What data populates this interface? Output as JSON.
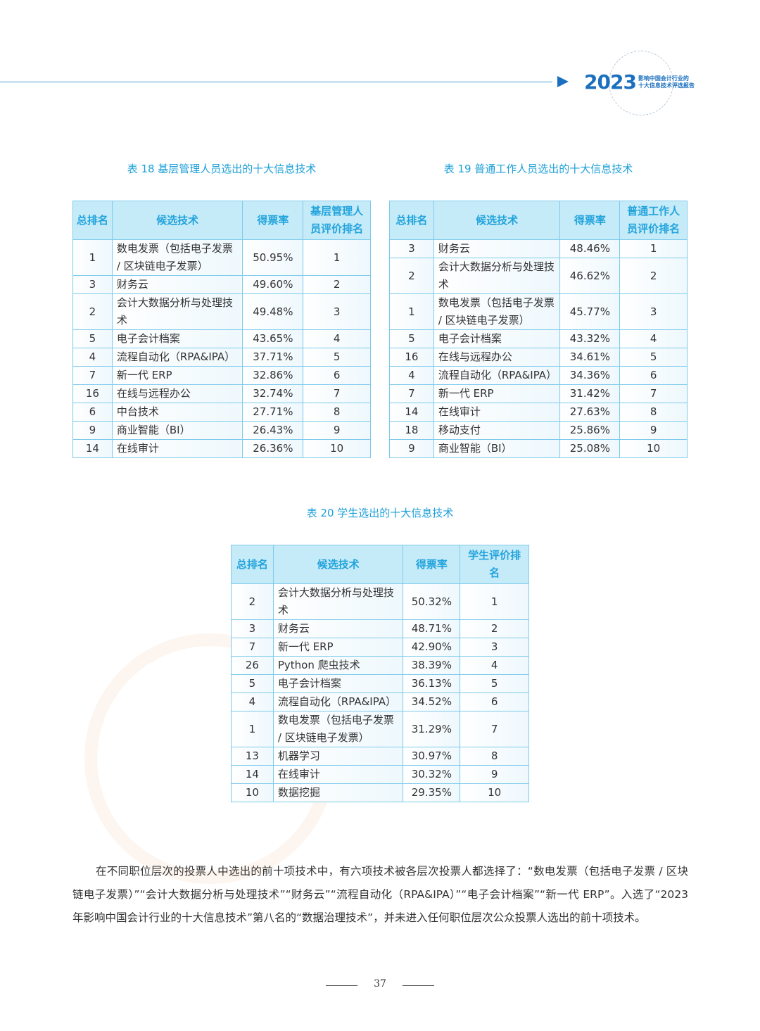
{
  "header": {
    "year": "2023",
    "subtitle_1": "影响中国会计行业的",
    "subtitle_2": "十大信息技术评选报告"
  },
  "table18": {
    "caption": "表 18  基层管理人员选出的十大信息技术",
    "headers": [
      "总排名",
      "候选技术",
      "得票率",
      "基层管理人员评价排名"
    ],
    "rows": [
      [
        "1",
        "数电发票（包括电子发票 / 区块链电子发票）",
        "50.95%",
        "1"
      ],
      [
        "3",
        "财务云",
        "49.60%",
        "2"
      ],
      [
        "2",
        "会计大数据分析与处理技术",
        "49.48%",
        "3"
      ],
      [
        "5",
        "电子会计档案",
        "43.65%",
        "4"
      ],
      [
        "4",
        "流程自动化（RPA&IPA）",
        "37.71%",
        "5"
      ],
      [
        "7",
        "新一代 ERP",
        "32.86%",
        "6"
      ],
      [
        "16",
        "在线与远程办公",
        "32.74%",
        "7"
      ],
      [
        "6",
        "中台技术",
        "27.71%",
        "8"
      ],
      [
        "9",
        "商业智能（BI）",
        "26.43%",
        "9"
      ],
      [
        "14",
        "在线审计",
        "26.36%",
        "10"
      ]
    ]
  },
  "table19": {
    "caption": "表 19  普通工作人员选出的十大信息技术",
    "headers": [
      "总排名",
      "候选技术",
      "得票率",
      "普通工作人员评价排名"
    ],
    "rows": [
      [
        "3",
        "财务云",
        "48.46%",
        "1"
      ],
      [
        "2",
        "会计大数据分析与处理技术",
        "46.62%",
        "2"
      ],
      [
        "1",
        "数电发票（包括电子发票 / 区块链电子发票）",
        "45.77%",
        "3"
      ],
      [
        "5",
        "电子会计档案",
        "43.32%",
        "4"
      ],
      [
        "16",
        "在线与远程办公",
        "34.61%",
        "5"
      ],
      [
        "4",
        "流程自动化（RPA&IPA）",
        "34.36%",
        "6"
      ],
      [
        "7",
        "新一代 ERP",
        "31.42%",
        "7"
      ],
      [
        "14",
        "在线审计",
        "27.63%",
        "8"
      ],
      [
        "18",
        "移动支付",
        "25.86%",
        "9"
      ],
      [
        "9",
        "商业智能（BI）",
        "25.08%",
        "10"
      ]
    ]
  },
  "table20": {
    "caption": "表 20  学生选出的十大信息技术",
    "headers": [
      "总排名",
      "候选技术",
      "得票率",
      "学生评价排名"
    ],
    "rows": [
      [
        "2",
        "会计大数据分析与处理技术",
        "50.32%",
        "1"
      ],
      [
        "3",
        "财务云",
        "48.71%",
        "2"
      ],
      [
        "7",
        "新一代 ERP",
        "42.90%",
        "3"
      ],
      [
        "26",
        "Python 爬虫技术",
        "38.39%",
        "4"
      ],
      [
        "5",
        "电子会计档案",
        "36.13%",
        "5"
      ],
      [
        "4",
        "流程自动化（RPA&IPA）",
        "34.52%",
        "6"
      ],
      [
        "1",
        "数电发票（包括电子发票 / 区块链电子发票）",
        "31.29%",
        "7"
      ],
      [
        "13",
        "机器学习",
        "30.97%",
        "8"
      ],
      [
        "14",
        "在线审计",
        "30.32%",
        "9"
      ],
      [
        "10",
        "数据挖掘",
        "29.35%",
        "10"
      ]
    ]
  },
  "paragraph": "在不同职位层次的投票人中选出的前十项技术中，有六项技术被各层次投票人都选择了：“数电发票（包括电子发票 / 区块链电子发票）”“会计大数据分析与处理技术”“财务云”“流程自动化（RPA&IPA）”“电子会计档案”“新一代 ERP”。入选了“2023 年影响中国会计行业的十大信息技术”第八名的“数据治理技术”，并未进入任何职位层次公众投票人选出的前十项技术。",
  "page_number": "37",
  "colors": {
    "accent": "#1ea0d8",
    "header_bg": "#c6ebf8",
    "brand": "#1b6fbf"
  }
}
